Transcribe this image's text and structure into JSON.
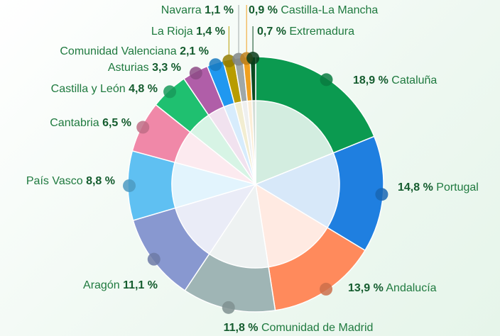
{
  "chart_data": {
    "type": "donut",
    "categories": [
      "Cataluña",
      "Portugal",
      "Andalucía",
      "Comunidad de Madrid",
      "Aragón",
      "País Vasco",
      "Cantabria",
      "Castilla y León",
      "Asturias",
      "Comunidad Valenciana",
      "La Rioja",
      "Navarra",
      "Castilla-La Mancha",
      "Extremadura"
    ],
    "values": [
      18.9,
      14.8,
      13.9,
      11.8,
      11.1,
      8.8,
      6.5,
      4.8,
      3.3,
      2.1,
      1.4,
      1.1,
      0.9,
      0.7
    ],
    "value_labels": [
      "18,9 %",
      "14,8 %",
      "13,9 %",
      "11,8 %",
      "11,1 %",
      "8,8 %",
      "6,5 %",
      "4,8 %",
      "3,3 %",
      "2,1 %",
      "1,4 %",
      "1,1 %",
      "0,9 %",
      "0,7 %"
    ],
    "colors": [
      "#0b9a50",
      "#1f7fe0",
      "#ff8a5c",
      "#9fb5b5",
      "#8898d0",
      "#5fc0f2",
      "#f088a8",
      "#1fc070",
      "#b05ea8",
      "#2098f0",
      "#b89c00",
      "#a0a8a8",
      "#f0a020",
      "#0a4a20"
    ]
  }
}
